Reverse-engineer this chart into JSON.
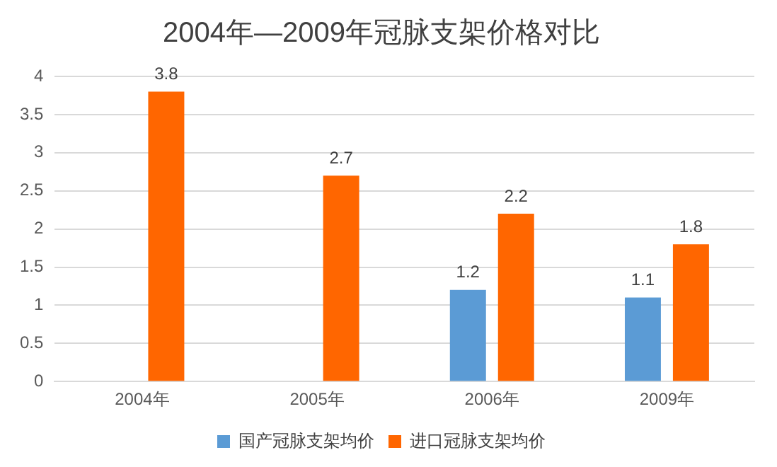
{
  "chart_data": {
    "type": "bar",
    "title": "2004年—2009年冠脉支架价格对比",
    "categories": [
      "2004年",
      "2005年",
      "2006年",
      "2009年"
    ],
    "series": [
      {
        "name": "国产冠脉支架均价",
        "color": "#5b9bd5",
        "values": [
          null,
          null,
          1.2,
          1.1
        ]
      },
      {
        "name": "进口冠脉支架均价",
        "color": "#ff6600",
        "values": [
          3.8,
          2.7,
          2.2,
          1.8
        ]
      }
    ],
    "ylim": [
      0,
      4
    ],
    "yticks": [
      0,
      0.5,
      1,
      1.5,
      2,
      2.5,
      3,
      3.5,
      4
    ],
    "grid": "y",
    "legend": "bottom",
    "data_labels": true
  }
}
